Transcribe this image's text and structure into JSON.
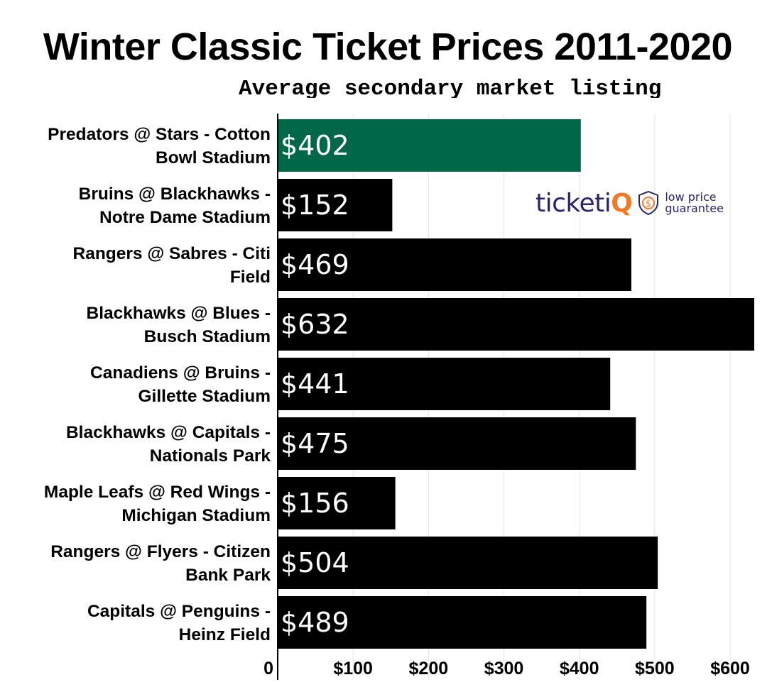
{
  "header": {
    "title": "Winter Classic Ticket Prices 2011-2020",
    "subtitle": "Average secondary market listing"
  },
  "logo": {
    "brand_prefix": "ticketi",
    "brand_suffix": "Q",
    "tagline_line1": "low price",
    "tagline_line2": "guarantee",
    "brand_color": "#2b2468",
    "accent_color": "#f07a2a",
    "badge_icon": "dollar-shield-icon"
  },
  "chart_data": {
    "type": "bar",
    "orientation": "horizontal",
    "title": "Winter Classic Ticket Prices 2011-2020",
    "subtitle": "Average secondary market listing",
    "categories": [
      [
        "Predators @ Stars - Cotton",
        "Bowl Stadium"
      ],
      [
        "Bruins @ Blackhawks -",
        "Notre Dame Stadium"
      ],
      [
        "Rangers @ Sabres - Citi",
        "Field"
      ],
      [
        "Blackhawks @ Blues -",
        "Busch Stadium"
      ],
      [
        "Canadiens @ Bruins -",
        "Gillette Stadium"
      ],
      [
        "Blackhawks @ Capitals -",
        "Nationals Park"
      ],
      [
        "Maple Leafs @ Red Wings -",
        "Michigan Stadium"
      ],
      [
        "Rangers @ Flyers - Citizen",
        "Bank Park"
      ],
      [
        "Capitals @ Penguins -",
        "Heinz Field"
      ]
    ],
    "values": [
      402,
      152,
      469,
      632,
      441,
      475,
      156,
      504,
      489
    ],
    "value_labels": [
      "$402",
      "$152",
      "$469",
      "$632",
      "$441",
      "$475",
      "$156",
      "$504",
      "$489"
    ],
    "bar_colors": [
      "#006747",
      "#000000",
      "#000000",
      "#000000",
      "#000000",
      "#000000",
      "#000000",
      "#000000",
      "#000000"
    ],
    "xticks": [
      0,
      100,
      200,
      300,
      400,
      500,
      600
    ],
    "xtick_labels": [
      "0",
      "$100",
      "$200",
      "$300",
      "$400",
      "$500",
      "$600"
    ],
    "xlim": [
      0,
      632
    ],
    "grid": true,
    "xlabel": "",
    "ylabel": ""
  }
}
